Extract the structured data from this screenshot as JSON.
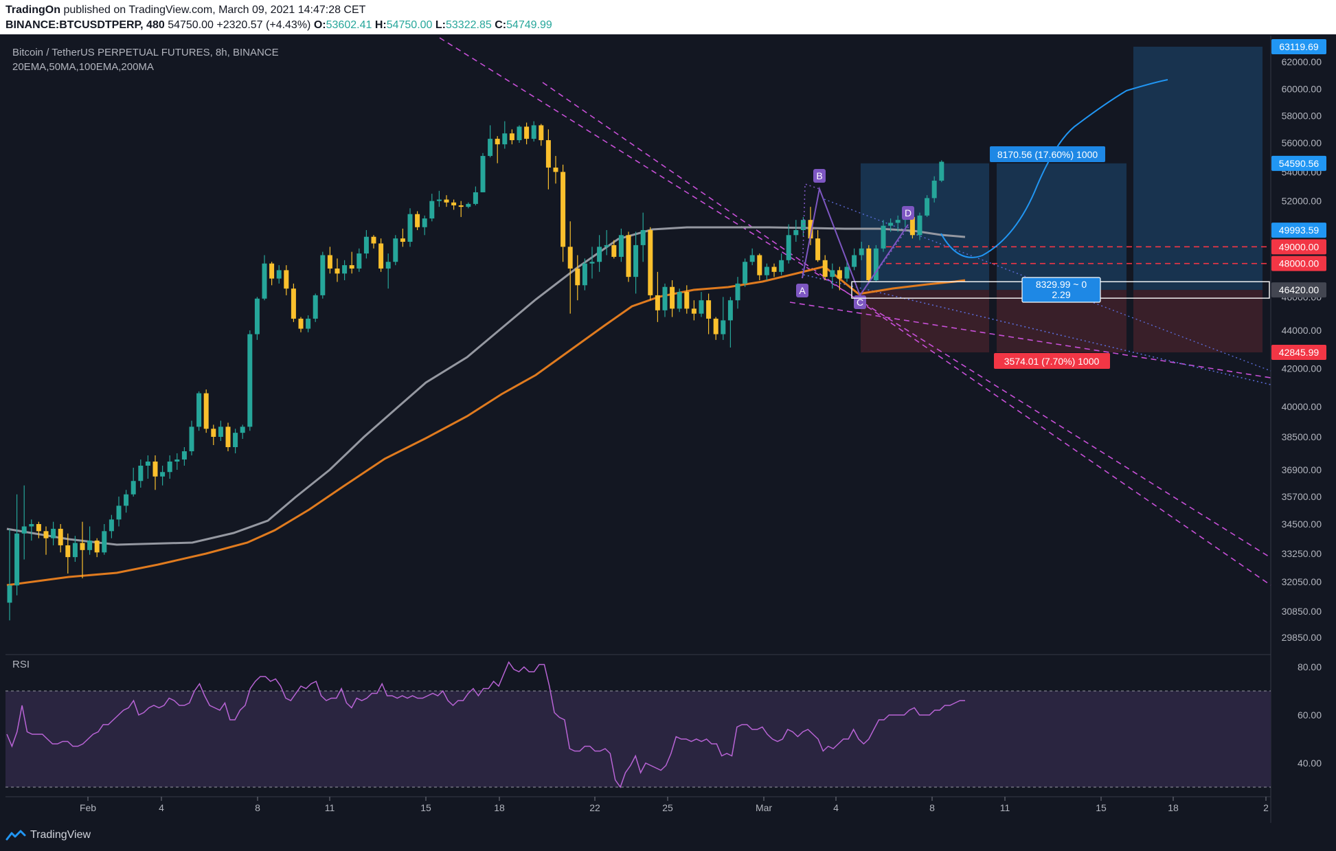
{
  "header": {
    "author": "TradingOn",
    "published": "published on TradingView.com, March 09, 2021 14:47:28 CET",
    "symbol": "BINANCE:BTCUSDTPERP, 480",
    "last": "54750.00",
    "change": "+2320.57 (+4.43%)",
    "o_label": "O:",
    "o": "53602.41",
    "h_label": "H:",
    "h": "54750.00",
    "l_label": "L:",
    "l": "53322.85",
    "c_label": "C:",
    "c": "54749.99"
  },
  "legend": {
    "title": "Bitcoin / TetherUS PERPETUAL FUTURES, 8h, BINANCE",
    "indicators": "20EMA,50MA,100EMA,200MA"
  },
  "rsi_label": "RSI",
  "footer": {
    "brand": "TradingView"
  },
  "colors": {
    "background": "#131722",
    "up": "#26a69a",
    "down": "#fbc02d",
    "ma_gray": "#9598a1",
    "ma_orange": "#e07b1f",
    "pattern": "#7e57c2",
    "trendline": "#c850d8",
    "projection": "#2196f3",
    "target": "#1e88e5",
    "stop": "#f23645",
    "rsi": "#b964d6"
  },
  "chart_data": [
    {
      "type": "candlestick",
      "ylim": [
        29000,
        64000
      ],
      "y_ticks": [
        "62000.00",
        "60000.00",
        "58000.00",
        "56000.00",
        "54000.00",
        "52000.00",
        "50000.00",
        "48000.00",
        "46000.00",
        "44000.00",
        "42000.00",
        "40000.00",
        "38500.00",
        "36900.00",
        "35700.00",
        "34500.00",
        "33250.00",
        "32050.00",
        "30850.00",
        "29850.00"
      ],
      "x_ticks": [
        "Feb",
        "4",
        "8",
        "11",
        "15",
        "18",
        "22",
        "25",
        "Mar",
        "4",
        "8",
        "11",
        "15",
        "18",
        "2"
      ],
      "price_labels": [
        {
          "text": "63119.69",
          "value": 63119.69,
          "color": "#2196f3"
        },
        {
          "text": "54590.56",
          "value": 54590.56,
          "color": "#2196f3"
        },
        {
          "text": "49993.59",
          "value": 49993.59,
          "color": "#2196f3"
        },
        {
          "text": "49000.00",
          "value": 49000,
          "color": "#f23645"
        },
        {
          "text": "48000.00",
          "value": 48000,
          "color": "#f23645"
        },
        {
          "text": "46420.00",
          "value": 46420,
          "color": "#434651"
        },
        {
          "text": "42845.99",
          "value": 42845.99,
          "color": "#f23645"
        }
      ],
      "positions": [
        {
          "entry": 46420.0,
          "target": 54590.56,
          "stop": 42845.99,
          "profit_label": "8170.56 (17.60%) 1000",
          "loss_label": "3574.01 (7.70%) 1000",
          "ratio_label": "8329.99 ~ 0",
          "ratio_value": "2.29"
        }
      ],
      "pattern_points": [
        "A",
        "B",
        "C",
        "D"
      ],
      "candles": [
        [
          31200,
          34300,
          30500,
          31900
        ],
        [
          31900,
          35800,
          31500,
          34100
        ],
        [
          34100,
          36200,
          33000,
          34400
        ],
        [
          34400,
          34700,
          33800,
          34500
        ],
        [
          34500,
          34600,
          33900,
          34200
        ],
        [
          34200,
          34400,
          33200,
          33900
        ],
        [
          33900,
          34600,
          33600,
          34300
        ],
        [
          34300,
          34500,
          33300,
          33600
        ],
        [
          33600,
          34100,
          32400,
          33100
        ],
        [
          33100,
          34000,
          32900,
          33700
        ],
        [
          33700,
          34600,
          32200,
          33400
        ],
        [
          33400,
          34400,
          33200,
          33800
        ],
        [
          33800,
          33900,
          33100,
          33300
        ],
        [
          33300,
          34500,
          33200,
          34200
        ],
        [
          34200,
          34900,
          33900,
          34700
        ],
        [
          34700,
          35700,
          34400,
          35300
        ],
        [
          35300,
          36000,
          35000,
          35800
        ],
        [
          35800,
          37000,
          35700,
          36400
        ],
        [
          36400,
          37400,
          36100,
          37100
        ],
        [
          37100,
          37600,
          36500,
          37300
        ],
        [
          37300,
          37600,
          36000,
          36600
        ],
        [
          36600,
          37100,
          36200,
          36800
        ],
        [
          36800,
          37600,
          36500,
          37300
        ],
        [
          37300,
          37700,
          36900,
          37400
        ],
        [
          37400,
          38000,
          37100,
          37800
        ],
        [
          37800,
          39300,
          37600,
          39000
        ],
        [
          39000,
          40800,
          38800,
          40700
        ],
        [
          40700,
          40900,
          38700,
          38900
        ],
        [
          38900,
          39100,
          38100,
          38500
        ],
        [
          38500,
          39300,
          38300,
          39000
        ],
        [
          39000,
          39200,
          37800,
          38000
        ],
        [
          38000,
          38900,
          37700,
          38700
        ],
        [
          38700,
          39100,
          38400,
          39000
        ],
        [
          39000,
          44000,
          38800,
          43800
        ],
        [
          43800,
          46000,
          43500,
          45900
        ],
        [
          45900,
          48500,
          45800,
          48000
        ],
        [
          48000,
          48100,
          46700,
          47100
        ],
        [
          47100,
          47900,
          46800,
          47600
        ],
        [
          47600,
          47900,
          46100,
          46500
        ],
        [
          46500,
          46800,
          44500,
          44700
        ],
        [
          44700,
          44800,
          43900,
          44100
        ],
        [
          44100,
          44900,
          43900,
          44700
        ],
        [
          44700,
          46200,
          44500,
          46100
        ],
        [
          46100,
          48700,
          45900,
          48500
        ],
        [
          48500,
          49000,
          47400,
          47700
        ],
        [
          47700,
          48300,
          46900,
          47400
        ],
        [
          47400,
          48200,
          47000,
          47900
        ],
        [
          47900,
          48700,
          47400,
          47700
        ],
        [
          47700,
          48900,
          47500,
          48600
        ],
        [
          48600,
          50000,
          48300,
          49600
        ],
        [
          49600,
          49700,
          48900,
          49200
        ],
        [
          49200,
          49500,
          47500,
          47700
        ],
        [
          47700,
          48600,
          46500,
          48100
        ],
        [
          48100,
          49700,
          47900,
          49500
        ],
        [
          49500,
          50100,
          49000,
          49300
        ],
        [
          49300,
          51500,
          49000,
          51100
        ],
        [
          51100,
          51300,
          50000,
          50200
        ],
        [
          50200,
          51000,
          49700,
          50800
        ],
        [
          50800,
          52500,
          50600,
          52000
        ],
        [
          52000,
          52700,
          51600,
          52100
        ],
        [
          52100,
          52400,
          51600,
          51900
        ],
        [
          51900,
          52100,
          51400,
          51700
        ],
        [
          51700,
          52000,
          50900,
          51600
        ],
        [
          51600,
          51900,
          51500,
          51800
        ],
        [
          51800,
          53000,
          51700,
          52600
        ],
        [
          52600,
          55300,
          52600,
          55100
        ],
        [
          55100,
          57300,
          55000,
          56300
        ],
        [
          56300,
          56500,
          54600,
          55900
        ],
        [
          55900,
          57600,
          55600,
          56700
        ],
        [
          56700,
          57000,
          55900,
          56200
        ],
        [
          56200,
          57300,
          56000,
          57200
        ],
        [
          57200,
          57500,
          55900,
          56300
        ],
        [
          56300,
          57600,
          56100,
          57300
        ],
        [
          57300,
          57400,
          55800,
          56200
        ],
        [
          56200,
          57000,
          52800,
          54300
        ],
        [
          54300,
          55100,
          53200,
          54000
        ],
        [
          54000,
          54500,
          48100,
          49000
        ],
        [
          49000,
          50600,
          45000,
          47700
        ],
        [
          47700,
          48500,
          45800,
          46700
        ],
        [
          46700,
          48300,
          46400,
          48000
        ],
        [
          48000,
          49000,
          47100,
          48100
        ],
        [
          48100,
          49700,
          47500,
          49000
        ],
        [
          49000,
          50000,
          48500,
          49100
        ],
        [
          49100,
          49400,
          48300,
          48400
        ],
        [
          48400,
          50100,
          48100,
          49700
        ],
        [
          49700,
          49900,
          46900,
          47200
        ],
        [
          47200,
          49900,
          46200,
          49100
        ],
        [
          49100,
          51200,
          48100,
          50000
        ],
        [
          50000,
          50200,
          45800,
          46100
        ],
        [
          46100,
          47500,
          44500,
          45200
        ],
        [
          45200,
          46800,
          44800,
          46600
        ],
        [
          46600,
          47000,
          44800,
          45300
        ],
        [
          45300,
          46500,
          45100,
          46300
        ],
        [
          46300,
          46700,
          45000,
          45300
        ],
        [
          45300,
          45800,
          44600,
          45000
        ],
        [
          45000,
          46300,
          44800,
          45800
        ],
        [
          45800,
          46200,
          43800,
          44700
        ],
        [
          44700,
          44800,
          43500,
          43800
        ],
        [
          43800,
          46000,
          43500,
          44600
        ],
        [
          44600,
          46000,
          43100,
          45800
        ],
        [
          45800,
          47200,
          45300,
          46800
        ],
        [
          46800,
          48300,
          46600,
          48100
        ],
        [
          48100,
          48900,
          47900,
          48500
        ],
        [
          48500,
          48600,
          47000,
          47300
        ],
        [
          47300,
          48000,
          47000,
          47800
        ],
        [
          47800,
          48000,
          47200,
          47500
        ],
        [
          47500,
          48600,
          47300,
          48200
        ],
        [
          48200,
          50400,
          48000,
          49700
        ],
        [
          49700,
          50700,
          49300,
          50000
        ],
        [
          50000,
          50900,
          49600,
          50700
        ],
        [
          50700,
          51600,
          49100,
          49500
        ],
        [
          49500,
          50000,
          48100,
          48200
        ],
        [
          48200,
          48500,
          47000,
          47200
        ],
        [
          47200,
          48000,
          46500,
          47600
        ],
        [
          47600,
          47800,
          46400,
          47100
        ],
        [
          47100,
          48100,
          46900,
          47800
        ],
        [
          47800,
          48900,
          47600,
          48500
        ],
        [
          48500,
          49300,
          48200,
          48900
        ],
        [
          48900,
          49100,
          46800,
          47000
        ],
        [
          47000,
          49100,
          46900,
          48900
        ],
        [
          48900,
          50700,
          48700,
          50300
        ],
        [
          50300,
          50800,
          49900,
          50500
        ],
        [
          50500,
          51000,
          49900,
          50700
        ],
        [
          50700,
          51300,
          50200,
          50900
        ],
        [
          50900,
          51200,
          49500,
          49700
        ],
        [
          49700,
          51200,
          49400,
          51000
        ],
        [
          51000,
          52400,
          50900,
          52200
        ],
        [
          52200,
          53700,
          51900,
          53400
        ],
        [
          53400,
          54800,
          53300,
          54700
        ]
      ]
    },
    {
      "type": "line",
      "title": "RSI",
      "ylim": [
        26,
        84
      ],
      "y_ticks": [
        "80.00",
        "60.00",
        "40.00"
      ],
      "values": [
        52,
        47,
        53,
        64,
        53,
        52,
        52,
        52,
        50,
        48,
        48,
        49,
        49,
        47,
        47,
        48,
        50,
        52,
        53,
        56,
        56,
        58,
        60,
        62,
        63,
        66,
        60,
        61,
        63,
        64,
        63,
        64,
        67,
        66,
        64,
        64,
        65,
        70,
        73,
        68,
        64,
        63,
        62,
        65,
        58,
        58,
        62,
        64,
        71,
        74,
        76,
        76,
        74,
        75,
        72,
        67,
        66,
        69,
        72,
        71,
        73,
        74,
        68,
        66,
        67,
        67,
        71,
        65,
        63,
        67,
        66,
        67,
        69,
        69,
        73,
        68,
        68,
        67,
        68,
        67,
        68,
        67,
        67,
        68,
        69,
        68,
        70,
        66,
        64,
        66,
        66,
        69,
        71,
        68,
        71,
        71,
        74,
        72,
        77,
        82,
        79,
        78,
        80,
        78,
        78,
        81,
        81,
        72,
        61,
        59,
        58,
        46,
        45,
        45,
        47,
        47,
        45,
        45,
        46,
        44,
        33,
        30,
        36,
        39,
        43,
        36,
        40,
        39,
        38,
        37,
        39,
        44,
        51,
        50,
        50,
        49,
        50,
        49,
        50,
        48,
        48,
        43,
        44,
        43,
        55,
        56,
        56,
        54,
        54,
        55,
        52,
        50,
        49,
        50,
        54,
        53,
        51,
        53,
        54,
        52,
        50,
        45,
        47,
        46,
        48,
        50,
        50,
        54,
        50,
        48,
        50,
        54,
        58,
        58,
        60,
        60,
        60,
        60,
        62,
        63,
        60,
        60,
        60,
        62,
        62,
        64,
        64,
        65,
        66,
        66
      ]
    }
  ]
}
